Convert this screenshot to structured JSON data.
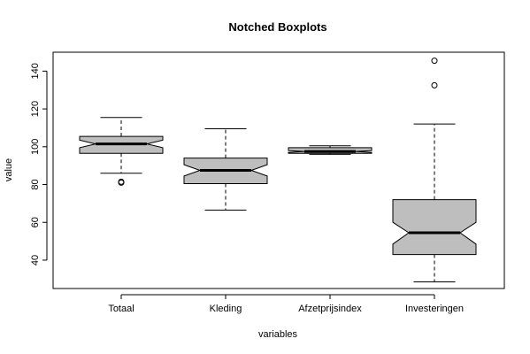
{
  "chart_data": {
    "type": "boxplot",
    "notched": true,
    "title": "Notched Boxplots",
    "xlabel": "variables",
    "ylabel": "value",
    "ylim": [
      25,
      150
    ],
    "y_ticks": [
      40,
      60,
      80,
      100,
      120,
      140
    ],
    "grid": false,
    "legend": "none",
    "box_fill": "#bebebe",
    "categories": [
      "Totaal",
      "Kleding",
      "Afzetprijsindex",
      "Investeringen"
    ],
    "boxes": [
      {
        "category": "Totaal",
        "whisker_low": 86,
        "q1": 96.5,
        "median": 101.5,
        "q3": 105.5,
        "whisker_high": 115.5,
        "notch_low": 99.5,
        "notch_high": 103.5,
        "outliers": [
          81,
          81.5
        ]
      },
      {
        "category": "Kleding",
        "whisker_low": 66.5,
        "q1": 80.5,
        "median": 87.5,
        "q3": 94,
        "whisker_high": 109.5,
        "notch_low": 84.5,
        "notch_high": 90.5,
        "outliers": []
      },
      {
        "category": "Afzetprijsindex",
        "whisker_low": 96,
        "q1": 96.5,
        "median": 97.5,
        "q3": 99.5,
        "whisker_high": 100.5,
        "notch_low": 97,
        "notch_high": 98,
        "outliers": []
      },
      {
        "category": "Investeringen",
        "whisker_low": 28.5,
        "q1": 43,
        "median": 54.5,
        "q3": 72,
        "whisker_high": 112,
        "notch_low": 48.5,
        "notch_high": 60,
        "outliers": [
          132.5,
          145.5
        ]
      }
    ]
  }
}
